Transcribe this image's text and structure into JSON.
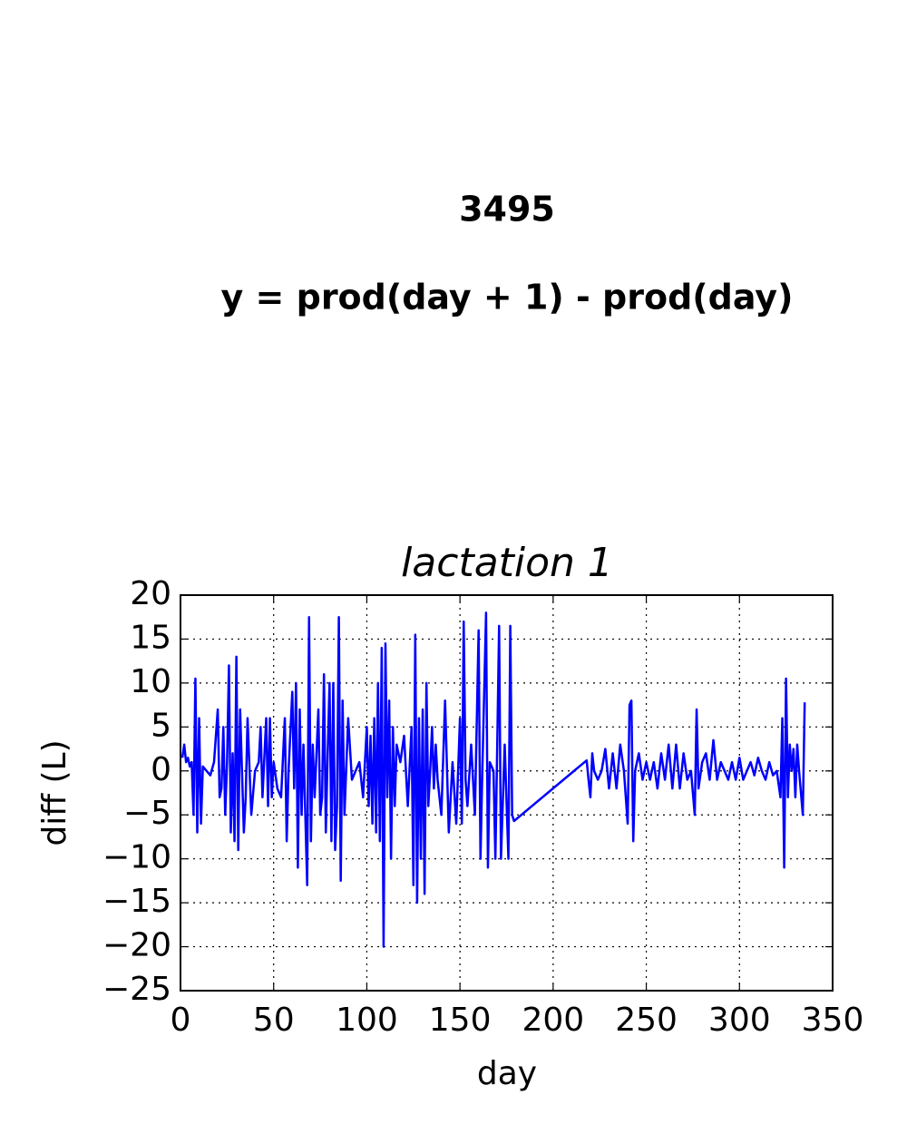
{
  "chart_data": {
    "type": "line",
    "title": "3495",
    "subtitle": "y = prod(day + 1) - prod(day)",
    "plot_title": "lactation 1",
    "x_label": "day",
    "y_label": "diff (L)",
    "xlim": [
      0,
      350
    ],
    "ylim": [
      -25,
      20
    ],
    "xticks": [
      0,
      50,
      100,
      150,
      200,
      250,
      300,
      350
    ],
    "yticks": [
      {
        "value": -25,
        "label": "−25"
      },
      {
        "value": -20,
        "label": "−20"
      },
      {
        "value": -15,
        "label": "−15"
      },
      {
        "value": -10,
        "label": "−10"
      },
      {
        "value": -5,
        "label": "−5"
      },
      0,
      5,
      10,
      15,
      20
    ],
    "grid": true,
    "x": [
      1,
      2,
      3,
      4,
      5,
      6,
      7,
      8,
      9,
      10,
      11,
      12,
      14,
      16,
      18,
      20,
      21,
      22,
      23,
      24,
      25,
      26,
      27,
      28,
      29,
      30,
      31,
      32,
      33,
      34,
      35,
      36,
      38,
      40,
      42,
      43,
      44,
      46,
      47,
      48,
      49,
      50,
      52,
      54,
      56,
      57,
      58,
      60,
      61,
      62,
      63,
      64,
      65,
      66,
      68,
      69,
      70,
      71,
      72,
      74,
      75,
      76,
      77,
      78,
      79,
      80,
      81,
      82,
      83,
      84,
      85,
      86,
      87,
      88,
      90,
      92,
      94,
      96,
      98,
      100,
      101,
      102,
      103,
      104,
      105,
      106,
      107,
      108,
      109,
      110,
      111,
      112,
      113,
      114,
      115,
      116,
      118,
      120,
      122,
      124,
      125,
      126,
      127,
      128,
      129,
      130,
      131,
      132,
      133,
      134,
      135,
      136,
      137,
      138,
      140,
      142,
      144,
      146,
      148,
      150,
      151,
      152,
      153,
      154,
      156,
      158,
      160,
      161,
      162,
      164,
      165,
      166,
      168,
      169,
      170,
      171,
      172,
      174,
      176,
      177,
      178,
      179,
      218,
      219,
      220,
      221,
      222,
      224,
      226,
      228,
      230,
      232,
      234,
      236,
      238,
      240,
      241,
      242,
      243,
      244,
      246,
      248,
      250,
      252,
      254,
      256,
      258,
      260,
      262,
      264,
      266,
      268,
      270,
      272,
      274,
      276,
      277,
      278,
      280,
      282,
      284,
      286,
      288,
      290,
      292,
      294,
      296,
      298,
      300,
      302,
      304,
      306,
      308,
      310,
      312,
      314,
      316,
      318,
      320,
      322,
      323,
      324,
      325,
      326,
      327,
      328,
      329,
      330,
      331,
      332,
      334,
      335
    ],
    "series": [
      {
        "name": "diff",
        "color": "#0000ff",
        "values": [
          1.5,
          3,
          1,
          1.5,
          0.5,
          1,
          -5,
          10.5,
          -7,
          6,
          -6,
          0.5,
          0,
          -0.5,
          1,
          7,
          -3,
          -2,
          5,
          -5,
          1,
          12,
          -7,
          2,
          -8,
          13,
          -9,
          7,
          0,
          -7,
          -3,
          6,
          -5,
          0,
          1,
          5,
          -3,
          6,
          -4,
          6,
          -3,
          1,
          -2,
          -3,
          6,
          -8,
          0,
          9,
          -2,
          10,
          -11,
          7,
          -5,
          3,
          -13,
          17.5,
          -8,
          3,
          -3,
          7,
          -5,
          -3,
          11,
          -7,
          2,
          10,
          -8,
          10,
          -9,
          -4,
          17.5,
          -12.5,
          8,
          -5,
          6,
          -1,
          0,
          1,
          -3,
          5,
          -4,
          4,
          -6,
          6,
          -7,
          10,
          -8,
          14,
          -20,
          14.5,
          -3,
          8,
          -10,
          5,
          -4,
          3,
          1,
          4,
          -4,
          5,
          -13,
          15.5,
          -15,
          6,
          -10,
          7,
          -14,
          10,
          -4,
          0,
          5,
          -2,
          3,
          -1,
          -5,
          8,
          -7,
          1,
          -6,
          6,
          -6,
          17,
          -1,
          -4,
          3,
          -5,
          16,
          -10,
          0,
          18,
          -11,
          1,
          0,
          -10,
          3,
          16.5,
          -10,
          3,
          -10,
          16.5,
          -5,
          -5.7,
          1.2,
          -1,
          -3,
          2,
          0,
          -1,
          0,
          2.5,
          -2,
          2,
          -2,
          3,
          0,
          -6,
          7.5,
          8,
          -8,
          0,
          2,
          -1,
          1,
          -1,
          1,
          -2,
          2,
          -1,
          3,
          -2,
          3,
          -2,
          2,
          -1,
          0,
          -5,
          7,
          -2,
          1,
          2,
          -1,
          3.5,
          -1,
          1,
          0,
          -1,
          1,
          -1,
          1.5,
          -1,
          0,
          1,
          -0.5,
          1.5,
          0,
          -1,
          1,
          -0.5,
          0,
          -3,
          6,
          -11,
          10.5,
          -3,
          3,
          0,
          2.5,
          -3,
          3,
          0,
          -5,
          7.8
        ]
      }
    ]
  }
}
